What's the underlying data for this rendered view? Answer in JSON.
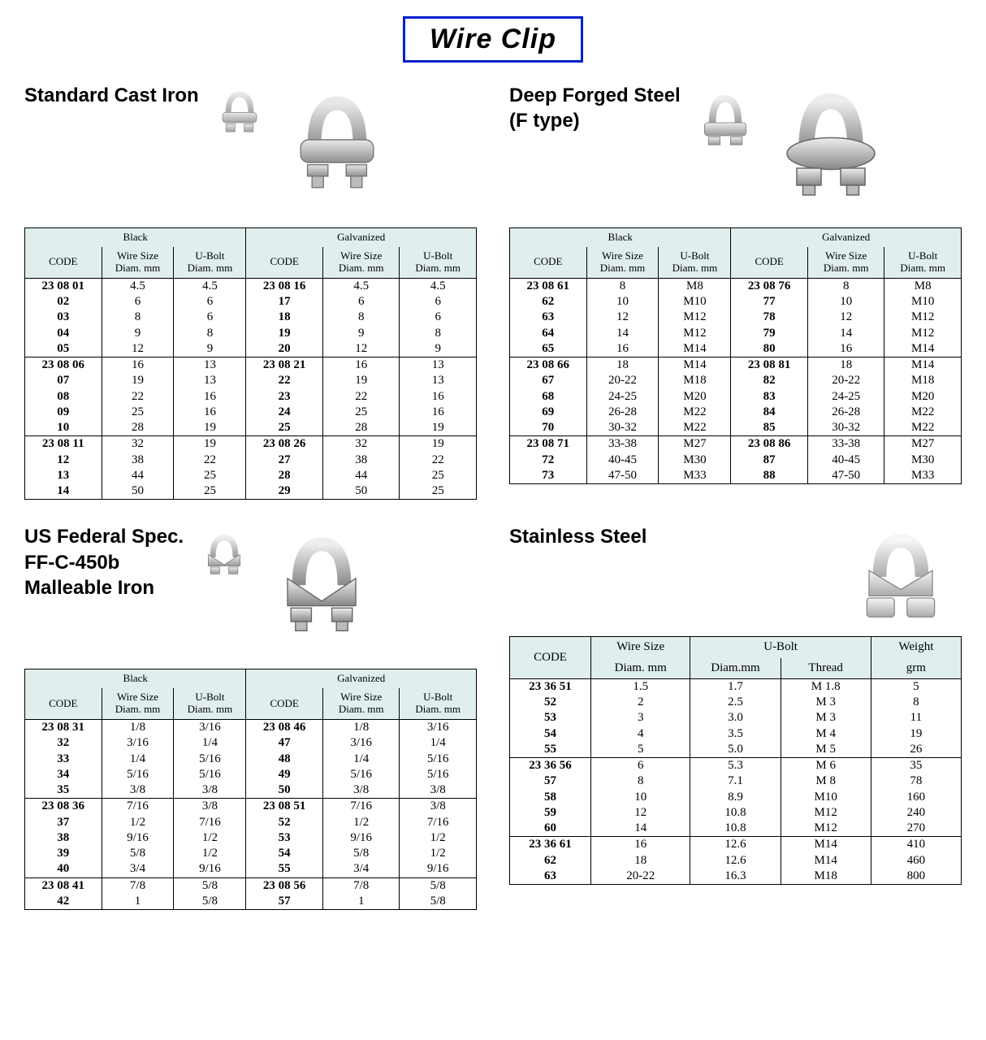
{
  "title": "Wire Clip",
  "colors": {
    "title_border": "#0020d0",
    "header_bg": "#e0eeee",
    "border": "#000000",
    "text": "#000000",
    "background": "#ffffff"
  },
  "labels": {
    "black": "Black",
    "galvanized": "Galvanized",
    "code": "CODE",
    "wire_size": "Wire Size",
    "diam_mm": "Diam. mm",
    "ubolt": "U-Bolt",
    "ubolt_diam": "Diam.mm",
    "thread": "Thread",
    "weight": "Weight",
    "grm": "grm"
  },
  "sections": {
    "std": {
      "title": "Standard Cast Iron",
      "groups": [
        {
          "rows": [
            [
              "23 08 01",
              "4.5",
              "4.5",
              "23 08 16",
              "4.5",
              "4.5"
            ],
            [
              "02",
              "6",
              "6",
              "17",
              "6",
              "6"
            ],
            [
              "03",
              "8",
              "6",
              "18",
              "8",
              "6"
            ],
            [
              "04",
              "9",
              "8",
              "19",
              "9",
              "8"
            ],
            [
              "05",
              "12",
              "9",
              "20",
              "12",
              "9"
            ]
          ]
        },
        {
          "rows": [
            [
              "23 08 06",
              "16",
              "13",
              "23 08 21",
              "16",
              "13"
            ],
            [
              "07",
              "19",
              "13",
              "22",
              "19",
              "13"
            ],
            [
              "08",
              "22",
              "16",
              "23",
              "22",
              "16"
            ],
            [
              "09",
              "25",
              "16",
              "24",
              "25",
              "16"
            ],
            [
              "10",
              "28",
              "19",
              "25",
              "28",
              "19"
            ]
          ]
        },
        {
          "rows": [
            [
              "23 08 11",
              "32",
              "19",
              "23 08 26",
              "32",
              "19"
            ],
            [
              "12",
              "38",
              "22",
              "27",
              "38",
              "22"
            ],
            [
              "13",
              "44",
              "25",
              "28",
              "44",
              "25"
            ],
            [
              "14",
              "50",
              "25",
              "29",
              "50",
              "25"
            ]
          ]
        }
      ]
    },
    "deep": {
      "title": "Deep Forged Steel\n(F type)",
      "groups": [
        {
          "rows": [
            [
              "23 08 61",
              "8",
              "M8",
              "23 08 76",
              "8",
              "M8"
            ],
            [
              "62",
              "10",
              "M10",
              "77",
              "10",
              "M10"
            ],
            [
              "63",
              "12",
              "M12",
              "78",
              "12",
              "M12"
            ],
            [
              "64",
              "14",
              "M12",
              "79",
              "14",
              "M12"
            ],
            [
              "65",
              "16",
              "M14",
              "80",
              "16",
              "M14"
            ]
          ]
        },
        {
          "rows": [
            [
              "23 08 66",
              "18",
              "M14",
              "23 08 81",
              "18",
              "M14"
            ],
            [
              "67",
              "20-22",
              "M18",
              "82",
              "20-22",
              "M18"
            ],
            [
              "68",
              "24-25",
              "M20",
              "83",
              "24-25",
              "M20"
            ],
            [
              "69",
              "26-28",
              "M22",
              "84",
              "26-28",
              "M22"
            ],
            [
              "70",
              "30-32",
              "M22",
              "85",
              "30-32",
              "M22"
            ]
          ]
        },
        {
          "rows": [
            [
              "23 08 71",
              "33-38",
              "M27",
              "23 08 86",
              "33-38",
              "M27"
            ],
            [
              "72",
              "40-45",
              "M30",
              "87",
              "40-45",
              "M30"
            ],
            [
              "73",
              "47-50",
              "M33",
              "88",
              "47-50",
              "M33"
            ]
          ]
        }
      ]
    },
    "usfed": {
      "title": "US Federal Spec.\nFF-C-450b\nMalleable Iron",
      "groups": [
        {
          "rows": [
            [
              "23 08 31",
              "1/8",
              "3/16",
              "23 08 46",
              "1/8",
              "3/16"
            ],
            [
              "32",
              "3/16",
              "1/4",
              "47",
              "3/16",
              "1/4"
            ],
            [
              "33",
              "1/4",
              "5/16",
              "48",
              "1/4",
              "5/16"
            ],
            [
              "34",
              "5/16",
              "5/16",
              "49",
              "5/16",
              "5/16"
            ],
            [
              "35",
              "3/8",
              "3/8",
              "50",
              "3/8",
              "3/8"
            ]
          ]
        },
        {
          "rows": [
            [
              "23 08 36",
              "7/16",
              "3/8",
              "23 08 51",
              "7/16",
              "3/8"
            ],
            [
              "37",
              "1/2",
              "7/16",
              "52",
              "1/2",
              "7/16"
            ],
            [
              "38",
              "9/16",
              "1/2",
              "53",
              "9/16",
              "1/2"
            ],
            [
              "39",
              "5/8",
              "1/2",
              "54",
              "5/8",
              "1/2"
            ],
            [
              "40",
              "3/4",
              "9/16",
              "55",
              "3/4",
              "9/16"
            ]
          ]
        },
        {
          "rows": [
            [
              "23 08 41",
              "7/8",
              "5/8",
              "23 08 56",
              "7/8",
              "5/8"
            ],
            [
              "42",
              "1",
              "5/8",
              "57",
              "1",
              "5/8"
            ]
          ]
        }
      ]
    },
    "ss": {
      "title": "Stainless Steel",
      "groups": [
        {
          "rows": [
            [
              "23 36 51",
              "1.5",
              "1.7",
              "M  1.8",
              "5"
            ],
            [
              "52",
              "2",
              "2.5",
              "M  3",
              "8"
            ],
            [
              "53",
              "3",
              "3.0",
              "M  3",
              "11"
            ],
            [
              "54",
              "4",
              "3.5",
              "M  4",
              "19"
            ],
            [
              "55",
              "5",
              "5.0",
              "M  5",
              "26"
            ]
          ]
        },
        {
          "rows": [
            [
              "23 36 56",
              "6",
              "5.3",
              "M  6",
              "35"
            ],
            [
              "57",
              "8",
              "7.1",
              "M  8",
              "78"
            ],
            [
              "58",
              "10",
              "8.9",
              "M10",
              "160"
            ],
            [
              "59",
              "12",
              "10.8",
              "M12",
              "240"
            ],
            [
              "60",
              "14",
              "10.8",
              "M12",
              "270"
            ]
          ]
        },
        {
          "rows": [
            [
              "23 36 61",
              "16",
              "12.6",
              "M14",
              "410"
            ],
            [
              "62",
              "18",
              "12.6",
              "M14",
              "460"
            ],
            [
              "63",
              "20-22",
              "16.3",
              "M18",
              "800"
            ]
          ]
        }
      ]
    }
  }
}
